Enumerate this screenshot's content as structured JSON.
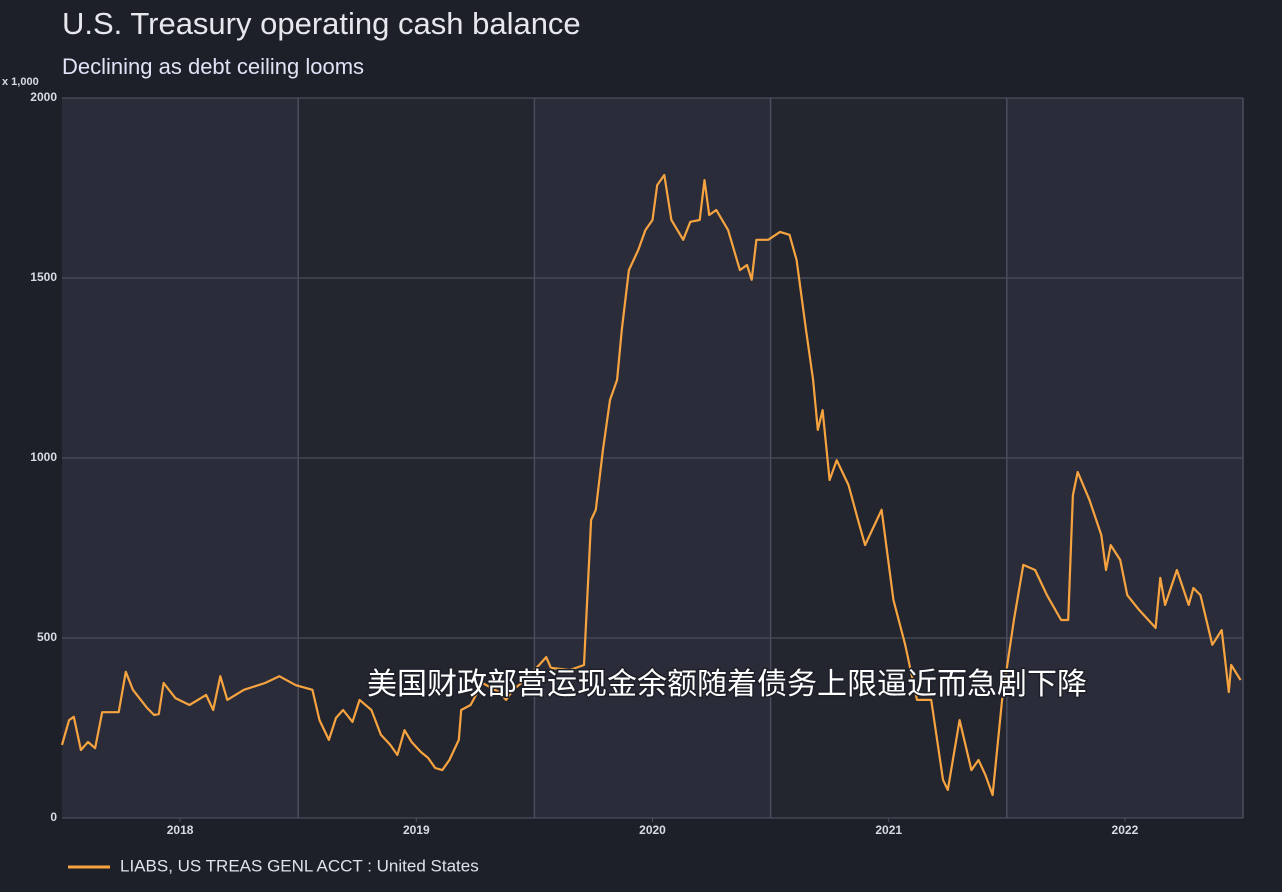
{
  "chart_data": {
    "type": "line",
    "title": "U.S. Treasury operating cash balance",
    "subtitle": "Declining as debt ceiling looms",
    "y_unit": "x 1,000",
    "caption": "美国财政部营运现金余额随着债务上限逼近而急剧下降",
    "xlim": [
      2017.5,
      2022.5
    ],
    "xticks": [
      2018,
      2019,
      2020,
      2021,
      2022
    ],
    "ylim": [
      0,
      2000
    ],
    "yticks": [
      0,
      500,
      1000,
      1500,
      2000
    ],
    "grid": true,
    "legend": "bottom-left",
    "x": [
      2017.5,
      2017.53,
      2017.55,
      2017.58,
      2017.61,
      2017.64,
      2017.67,
      2017.74,
      2017.77,
      2017.8,
      2017.86,
      2017.89,
      2017.91,
      2017.93,
      2017.98,
      2018.04,
      2018.11,
      2018.14,
      2018.17,
      2018.2,
      2018.27,
      2018.36,
      2018.42,
      2018.49,
      2018.56,
      2018.59,
      2018.63,
      2018.66,
      2018.69,
      2018.73,
      2018.76,
      2018.81,
      2018.85,
      2018.89,
      2018.92,
      2018.95,
      2018.98,
      2019.02,
      2019.05,
      2019.08,
      2019.11,
      2019.14,
      2019.18,
      2019.19,
      2019.23,
      2019.28,
      2019.35,
      2019.38,
      2019.41,
      2019.46,
      2019.52,
      2019.55,
      2019.57,
      2019.65,
      2019.71,
      2019.74,
      2019.76,
      2019.79,
      2019.82,
      2019.85,
      2019.87,
      2019.9,
      2019.94,
      2019.97,
      2020.0,
      2020.02,
      2020.05,
      2020.08,
      2020.13,
      2020.16,
      2020.2,
      2020.22,
      2020.24,
      2020.27,
      2020.32,
      2020.37,
      2020.4,
      2020.42,
      2020.44,
      2020.49,
      2020.54,
      2020.58,
      2020.61,
      2020.65,
      2020.68,
      2020.7,
      2020.72,
      2020.75,
      2020.78,
      2020.83,
      2020.87,
      2020.9,
      2020.92,
      2020.97,
      2021.02,
      2021.07,
      2021.12,
      2021.18,
      2021.23,
      2021.25,
      2021.3,
      2021.35,
      2021.38,
      2021.41,
      2021.44,
      2021.48,
      2021.53,
      2021.57,
      2021.62,
      2021.67,
      2021.73,
      2021.76,
      2021.78,
      2021.8,
      2021.85,
      2021.9,
      2021.92,
      2021.94,
      2021.98,
      2022.01,
      2022.06,
      2022.13,
      2022.15,
      2022.17,
      2022.22,
      2022.27,
      2022.29,
      2022.32,
      2022.37,
      2022.41,
      2022.44,
      2022.45,
      2022.49
    ],
    "series": [
      {
        "name": "LIABS, US TREAS GENL ACCT : United States",
        "color": "#f7a440",
        "values": [
          203,
          272,
          281,
          189,
          211,
          194,
          294,
          294,
          406,
          356,
          306,
          286,
          289,
          375,
          333,
          314,
          342,
          300,
          394,
          328,
          356,
          375,
          394,
          369,
          356,
          272,
          217,
          278,
          300,
          267,
          328,
          300,
          231,
          203,
          175,
          244,
          211,
          183,
          167,
          139,
          133,
          161,
          217,
          300,
          314,
          375,
          350,
          328,
          356,
          383,
          425,
          447,
          417,
          411,
          425,
          828,
          856,
          1022,
          1161,
          1217,
          1356,
          1522,
          1578,
          1633,
          1661,
          1758,
          1786,
          1661,
          1606,
          1656,
          1661,
          1772,
          1675,
          1689,
          1633,
          1522,
          1536,
          1495,
          1606,
          1606,
          1628,
          1620,
          1550,
          1356,
          1217,
          1078,
          1133,
          939,
          994,
          925,
          828,
          758,
          786,
          856,
          606,
          481,
          328,
          328,
          106,
          78,
          272,
          133,
          161,
          119,
          64,
          328,
          550,
          703,
          689,
          619,
          550,
          550,
          897,
          961,
          883,
          786,
          689,
          758,
          717,
          619,
          578,
          528,
          667,
          592,
          689,
          592,
          639,
          619,
          481,
          522,
          350,
          425,
          383
        ]
      }
    ]
  }
}
